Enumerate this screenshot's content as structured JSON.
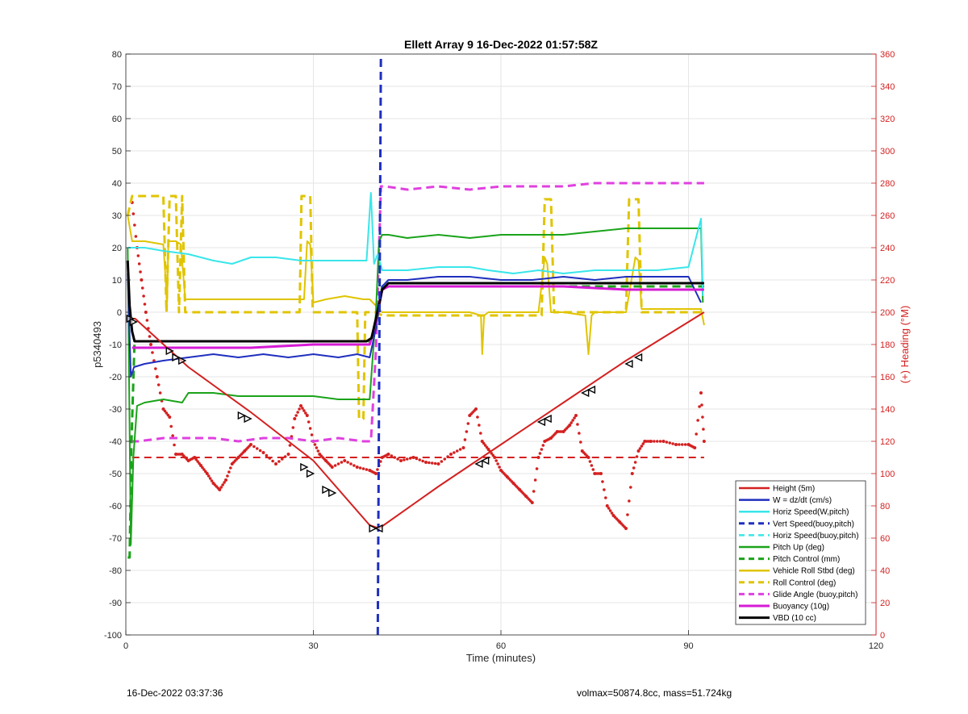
{
  "chart_data": {
    "type": "line",
    "title": "Ellett Array 9 16-Dec-2022 01:57:58Z",
    "xlabel": "Time (minutes)",
    "ylabel_left": "p5340493",
    "ylabel_right": "(+) Heading (°M)",
    "xlim": [
      0,
      120
    ],
    "ylim_left": [
      -100,
      80
    ],
    "ylim_right": [
      0,
      360
    ],
    "x_ticks": [
      0,
      30,
      60,
      90,
      120
    ],
    "y_left_ticks": [
      -100,
      -90,
      -80,
      -70,
      -60,
      -50,
      -40,
      -30,
      -20,
      -10,
      0,
      10,
      20,
      30,
      40,
      50,
      60,
      70,
      80
    ],
    "y_right_ticks": [
      0,
      20,
      40,
      60,
      80,
      100,
      120,
      140,
      160,
      180,
      200,
      220,
      240,
      260,
      280,
      300,
      320,
      340,
      360
    ],
    "grid": true,
    "legend_position": "bottom-right",
    "series": [
      {
        "name": "Height (5m)",
        "color": "#d42020",
        "style": "solid",
        "width": 2,
        "x": [
          0.5,
          1.5,
          10,
          20,
          30,
          39,
          40.5,
          50,
          60,
          70,
          80,
          92.5
        ],
        "y": [
          -2,
          -2,
          -17,
          -31,
          -46,
          -66,
          -67,
          -54,
          -41,
          -28,
          -15,
          0
        ]
      },
      {
        "name": "W = dz/dt (cm/s)",
        "color": "#1f2fbf",
        "style": "solid",
        "width": 2,
        "x": [
          0.3,
          0.8,
          1.3,
          3,
          6,
          10,
          14,
          18,
          22,
          26,
          30,
          34,
          37,
          39,
          40,
          41,
          42,
          45,
          50,
          55,
          60,
          65,
          70,
          75,
          80,
          85,
          90,
          92
        ],
        "y": [
          12,
          -20,
          -17,
          -16,
          -15,
          -14,
          -13,
          -14,
          -13,
          -14,
          -13,
          -14,
          -13,
          -14,
          -5,
          8,
          10,
          10,
          11,
          11,
          10,
          10,
          11,
          10,
          11,
          11,
          11,
          3
        ]
      },
      {
        "name": "Horiz Speed(W,pitch)",
        "color": "#38e6ea",
        "style": "solid",
        "width": 2,
        "x": [
          0.3,
          1,
          3,
          6,
          10,
          14,
          17,
          20,
          24,
          28,
          32,
          36,
          38.5,
          39.2,
          39.7,
          40.3,
          41,
          42,
          45,
          50,
          55,
          58,
          62,
          66,
          70,
          75,
          80,
          85,
          90,
          92,
          92.3
        ],
        "y": [
          20,
          20,
          20,
          19,
          18,
          16,
          15,
          17,
          17,
          16,
          16,
          16,
          16,
          37,
          15,
          18,
          13,
          13,
          13,
          14,
          14,
          13,
          12,
          13,
          12,
          13,
          13,
          13,
          14,
          29,
          5
        ]
      },
      {
        "name": "Vert Speed(buoy,pitch)",
        "color": "#1f2fbf",
        "style": "dashed",
        "width": 3,
        "x": [
          40.3,
          40.8
        ],
        "y": [
          -100,
          80
        ]
      },
      {
        "name": "Horiz Speed(buoy,pitch)",
        "color": "#38e6ea",
        "style": "dashed",
        "width": 2,
        "x": [],
        "y": []
      },
      {
        "name": "Pitch Up (deg)",
        "color": "#1aa31a",
        "style": "solid",
        "width": 2,
        "x": [
          0.3,
          0.8,
          1.2,
          1.8,
          3,
          6,
          9,
          10,
          14,
          18,
          22,
          26,
          30,
          34,
          38,
          39,
          40,
          40.5,
          41,
          42,
          45,
          50,
          55,
          60,
          65,
          70,
          75,
          80,
          85,
          90,
          92,
          92.3
        ],
        "y": [
          20,
          -72,
          -45,
          -29,
          -28,
          -27,
          -28,
          -25,
          -25,
          -26,
          -26,
          -26,
          -26,
          -27,
          -27,
          -27,
          0,
          22,
          24,
          24,
          23,
          24,
          23,
          24,
          24,
          24,
          25,
          26,
          26,
          26,
          26,
          3
        ]
      },
      {
        "name": "Pitch Control (mm)",
        "color": "#1aa31a",
        "style": "dashed",
        "width": 3,
        "x": [
          0.3,
          0.6,
          0.9,
          1.4,
          2,
          6,
          12,
          20,
          30,
          39,
          40,
          41,
          42,
          50,
          60,
          70,
          80,
          92.5
        ],
        "y": [
          -76,
          -76,
          -40,
          -9,
          -9,
          -9,
          -9,
          -9,
          -9,
          -9,
          -5,
          8,
          8,
          8,
          8,
          8,
          8,
          8
        ]
      },
      {
        "name": "Vehicle Roll Stbd (deg)",
        "color": "#e0c400",
        "style": "solid",
        "width": 2,
        "x": [
          0.3,
          1,
          3,
          6,
          6.6,
          6.8,
          8,
          8.8,
          9.5,
          12,
          18,
          20,
          24,
          28.5,
          29,
          29.5,
          30,
          32,
          35,
          38,
          39,
          40,
          41,
          45,
          50,
          55,
          56.8,
          57,
          57.3,
          58,
          62,
          66,
          67,
          67.4,
          68,
          70,
          73.5,
          74,
          74.5,
          75,
          80,
          81.5,
          82,
          82.5,
          83,
          88,
          92,
          92.5
        ],
        "y": [
          30,
          22,
          22,
          21,
          3,
          22,
          22,
          21,
          4,
          4,
          4,
          4,
          4,
          4,
          22,
          21,
          3,
          4,
          5,
          4,
          4,
          2,
          0,
          0,
          0,
          0,
          -1,
          -13,
          -1,
          0,
          0,
          0,
          17,
          15,
          0,
          0,
          -1,
          -13,
          -1,
          0,
          0,
          17,
          16,
          1,
          1,
          1,
          1,
          -4
        ]
      },
      {
        "name": "Roll Control (deg)",
        "color": "#e0c400",
        "style": "dashed",
        "width": 3,
        "x": [
          0.3,
          1,
          1.5,
          6,
          6.5,
          7,
          8,
          8.5,
          9,
          9.5,
          27.8,
          28.1,
          29.5,
          29.9,
          37,
          37.3,
          38,
          38.3,
          40,
          41,
          45,
          50,
          66.5,
          67,
          68,
          68.5,
          80,
          80.5,
          82,
          82.5,
          92.5
        ],
        "y": [
          30,
          36,
          36,
          36,
          0,
          36,
          36,
          0,
          36,
          0,
          0,
          36,
          36,
          0,
          0,
          -33,
          -33,
          0,
          0,
          -1,
          -1,
          -1,
          -1,
          35,
          35,
          0,
          0,
          35,
          35,
          0,
          0
        ]
      },
      {
        "name": "Glide Angle (buoy,pitch)",
        "color": "#e040e0",
        "style": "dashed",
        "width": 3,
        "x": [
          0.8,
          2,
          6,
          10,
          14,
          18,
          22,
          26,
          30,
          34,
          38,
          39.2,
          40,
          40.8,
          41.5,
          45,
          50,
          55,
          60,
          65,
          70,
          75,
          80,
          85,
          90,
          92.5
        ],
        "y": [
          -40,
          -40,
          -39,
          -39,
          -39,
          -40,
          -39,
          -39,
          -40,
          -39,
          -40,
          -40,
          -12,
          39,
          39,
          38,
          39,
          38,
          39,
          39,
          39,
          40,
          40,
          40,
          40,
          40
        ]
      },
      {
        "name": "Buoyancy (10g)",
        "color": "#d61bd6",
        "style": "solid",
        "width": 3,
        "x": [
          1,
          10,
          20,
          30,
          39,
          40,
          41,
          42,
          50,
          60,
          70,
          80,
          92.5
        ],
        "y": [
          -11,
          -11,
          -11,
          -10,
          -10,
          -3,
          7,
          8,
          8,
          8,
          8,
          7,
          7
        ]
      },
      {
        "name": "VBD (10 cc)",
        "color": "#000000",
        "style": "solid",
        "width": 3,
        "x": [
          0.3,
          0.6,
          1,
          1.4,
          2,
          10,
          20,
          30,
          38.5,
          39.3,
          40,
          41,
          42,
          50,
          60,
          70,
          80,
          92.5
        ],
        "y": [
          16,
          2,
          -6,
          -9,
          -9,
          -9,
          -9,
          -9,
          -9,
          -8,
          -2,
          7,
          9,
          9,
          9,
          9,
          9,
          9
        ]
      }
    ],
    "heading_series": {
      "color": "#d42020",
      "style": "dotted",
      "axis": "right",
      "x": [
        1,
        1.8,
        2.5,
        3.2,
        4,
        5,
        6,
        7,
        8,
        9,
        10,
        11,
        12,
        13,
        14,
        15,
        16,
        17,
        18,
        19,
        20,
        22,
        24,
        26,
        27,
        28,
        29,
        30,
        31,
        32,
        33,
        35,
        37,
        39,
        40,
        41,
        42,
        44,
        46,
        48,
        50,
        52,
        54,
        55,
        56,
        57,
        58,
        59,
        60,
        61,
        62,
        63,
        64,
        65,
        66,
        67,
        68,
        69,
        70,
        71,
        72,
        73,
        74,
        75,
        76,
        77,
        78,
        79,
        80,
        81,
        82,
        83,
        84,
        86,
        88,
        90,
        91,
        92,
        92.5
      ],
      "y": [
        268,
        240,
        220,
        200,
        180,
        160,
        140,
        135,
        112,
        112,
        108,
        110,
        105,
        100,
        94,
        90,
        96,
        106,
        110,
        114,
        118,
        113,
        106,
        112,
        134,
        142,
        136,
        120,
        112,
        108,
        104,
        108,
        104,
        102,
        100,
        110,
        112,
        108,
        110,
        107,
        106,
        112,
        116,
        136,
        140,
        120,
        115,
        110,
        102,
        98,
        94,
        90,
        86,
        82,
        110,
        120,
        122,
        126,
        126,
        130,
        136,
        114,
        110,
        100,
        100,
        80,
        74,
        70,
        66,
        100,
        114,
        120,
        120,
        120,
        118,
        118,
        116,
        150,
        120
      ]
    },
    "heading_mean": {
      "value": 110,
      "color": "#d42020",
      "style": "dashed"
    },
    "markers": {
      "color": "#000000",
      "points": [
        [
          0.7,
          -2
        ],
        [
          1.2,
          -3
        ],
        [
          7,
          -12
        ],
        [
          8,
          -14
        ],
        [
          9,
          -15
        ],
        [
          18.5,
          -32
        ],
        [
          19.5,
          -33
        ],
        [
          28.5,
          -48
        ],
        [
          29.5,
          -50
        ],
        [
          32,
          -55
        ],
        [
          33,
          -56
        ],
        [
          39.5,
          -67
        ],
        [
          40.5,
          -67
        ],
        [
          56.5,
          -47
        ],
        [
          57.5,
          -46
        ],
        [
          66.5,
          -34
        ],
        [
          67.5,
          -33
        ],
        [
          73.5,
          -25
        ],
        [
          74.5,
          -24
        ],
        [
          80.5,
          -16
        ],
        [
          82,
          -14
        ]
      ]
    },
    "footer_left": "16-Dec-2022 03:37:36",
    "footer_right": "volmax=50874.8cc, mass=51.724kg"
  }
}
